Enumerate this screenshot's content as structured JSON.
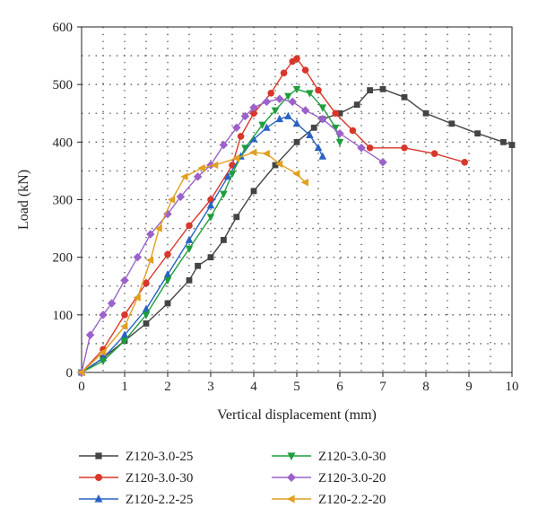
{
  "chart_data": {
    "type": "line",
    "xlabel": "Vertical displacement (mm)",
    "ylabel": "Load (kN)",
    "xlim": [
      0,
      10
    ],
    "ylim": [
      0,
      600
    ],
    "xticks": [
      0,
      1,
      2,
      3,
      4,
      5,
      6,
      7,
      8,
      9,
      10
    ],
    "yticks": [
      0,
      100,
      200,
      300,
      400,
      500,
      600
    ],
    "xtick_labels": [
      "0",
      "1",
      "2",
      "3",
      "4",
      "5",
      "6",
      "7",
      "8",
      "9",
      "10"
    ],
    "ytick_labels": [
      "0",
      "100",
      "200",
      "300",
      "400",
      "500",
      "600"
    ],
    "grid": true,
    "legend_position": "bottom",
    "series": [
      {
        "name": "Z120-3.0-25",
        "color": "#444444",
        "marker": "square",
        "points": [
          [
            0,
            0
          ],
          [
            0.5,
            25
          ],
          [
            1,
            55
          ],
          [
            1.5,
            85
          ],
          [
            2,
            120
          ],
          [
            2.5,
            160
          ],
          [
            2.7,
            185
          ],
          [
            3,
            200
          ],
          [
            3.3,
            230
          ],
          [
            3.6,
            270
          ],
          [
            4,
            315
          ],
          [
            4.5,
            360
          ],
          [
            5,
            400
          ],
          [
            5.4,
            425
          ],
          [
            5.6,
            440
          ],
          [
            6,
            450
          ],
          [
            6.4,
            465
          ],
          [
            6.7,
            490
          ],
          [
            7,
            492
          ],
          [
            7.5,
            478
          ],
          [
            8,
            450
          ],
          [
            8.6,
            432
          ],
          [
            9.2,
            415
          ],
          [
            9.8,
            400
          ],
          [
            10,
            395
          ]
        ]
      },
      {
        "name": "Z120-3.0-30",
        "color": "#d8372a",
        "marker": "circle",
        "points": [
          [
            0,
            0
          ],
          [
            0.5,
            40
          ],
          [
            1,
            100
          ],
          [
            1.5,
            155
          ],
          [
            2,
            205
          ],
          [
            2.5,
            255
          ],
          [
            3,
            300
          ],
          [
            3.5,
            360
          ],
          [
            3.7,
            410
          ],
          [
            4,
            450
          ],
          [
            4.4,
            485
          ],
          [
            4.7,
            520
          ],
          [
            4.9,
            540
          ],
          [
            5,
            545
          ],
          [
            5.2,
            525
          ],
          [
            5.5,
            490
          ],
          [
            5.9,
            450
          ],
          [
            6.3,
            420
          ],
          [
            6.7,
            390
          ],
          [
            7.5,
            390
          ],
          [
            8.2,
            380
          ],
          [
            8.9,
            365
          ]
        ]
      },
      {
        "name": "Z120-2.2-25",
        "color": "#2a62c4",
        "marker": "triangle-up",
        "points": [
          [
            0,
            0
          ],
          [
            0.5,
            25
          ],
          [
            1,
            65
          ],
          [
            1.5,
            110
          ],
          [
            2,
            170
          ],
          [
            2.5,
            230
          ],
          [
            3,
            290
          ],
          [
            3.4,
            340
          ],
          [
            3.7,
            375
          ],
          [
            4,
            405
          ],
          [
            4.3,
            425
          ],
          [
            4.6,
            440
          ],
          [
            4.8,
            445
          ],
          [
            5,
            432
          ],
          [
            5.3,
            412
          ],
          [
            5.5,
            390
          ],
          [
            5.6,
            375
          ]
        ]
      },
      {
        "name": "Z120-3.0-30",
        "color": "#1f9e3c",
        "marker": "triangle-down",
        "points": [
          [
            0,
            0
          ],
          [
            0.5,
            20
          ],
          [
            1,
            55
          ],
          [
            1.5,
            100
          ],
          [
            2,
            160
          ],
          [
            2.5,
            215
          ],
          [
            3,
            270
          ],
          [
            3.3,
            310
          ],
          [
            3.5,
            345
          ],
          [
            3.8,
            390
          ],
          [
            4.2,
            430
          ],
          [
            4.5,
            455
          ],
          [
            4.8,
            480
          ],
          [
            5,
            492
          ],
          [
            5.3,
            485
          ],
          [
            5.6,
            460
          ],
          [
            5.9,
            425
          ],
          [
            6,
            400
          ]
        ]
      },
      {
        "name": "Z120-3.0-20",
        "color": "#9b62c9",
        "marker": "diamond",
        "points": [
          [
            0,
            0
          ],
          [
            0.2,
            65
          ],
          [
            0.5,
            100
          ],
          [
            0.7,
            120
          ],
          [
            1,
            160
          ],
          [
            1.3,
            200
          ],
          [
            1.6,
            240
          ],
          [
            2,
            275
          ],
          [
            2.3,
            305
          ],
          [
            2.7,
            340
          ],
          [
            3,
            360
          ],
          [
            3.3,
            395
          ],
          [
            3.6,
            425
          ],
          [
            3.8,
            445
          ],
          [
            4,
            460
          ],
          [
            4.3,
            470
          ],
          [
            4.6,
            475
          ],
          [
            4.9,
            470
          ],
          [
            5.2,
            455
          ],
          [
            5.6,
            440
          ],
          [
            6,
            415
          ],
          [
            6.5,
            390
          ],
          [
            7,
            365
          ]
        ]
      },
      {
        "name": "Z120-2.2-20",
        "color": "#e0a020",
        "marker": "triangle-left",
        "points": [
          [
            0,
            0
          ],
          [
            0.5,
            35
          ],
          [
            1,
            80
          ],
          [
            1.3,
            130
          ],
          [
            1.6,
            195
          ],
          [
            1.8,
            250
          ],
          [
            2.1,
            300
          ],
          [
            2.4,
            340
          ],
          [
            2.8,
            355
          ],
          [
            3.1,
            360
          ],
          [
            3.6,
            372
          ],
          [
            4,
            382
          ],
          [
            4.3,
            380
          ],
          [
            4.6,
            362
          ],
          [
            5,
            345
          ],
          [
            5.2,
            330
          ]
        ]
      }
    ]
  }
}
